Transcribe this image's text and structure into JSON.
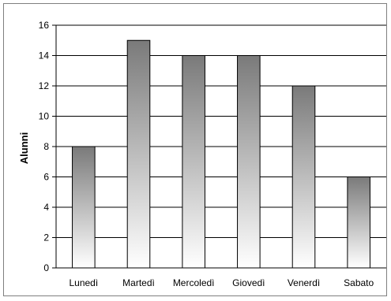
{
  "chart_data": {
    "type": "bar",
    "categories": [
      "Lunedì",
      "Martedì",
      "Mercoledì",
      "Giovedì",
      "Venerdì",
      "Sabato"
    ],
    "values": [
      8,
      15,
      14,
      14,
      12,
      6
    ],
    "title": "",
    "xlabel": "",
    "ylabel": "Alunni",
    "ylim": [
      0,
      16
    ],
    "yticks": [
      0,
      2,
      4,
      6,
      8,
      10,
      12,
      14,
      16
    ],
    "grid": true,
    "legend": "none",
    "bar_gradient": [
      "#7a7a7a",
      "#ffffff"
    ]
  }
}
